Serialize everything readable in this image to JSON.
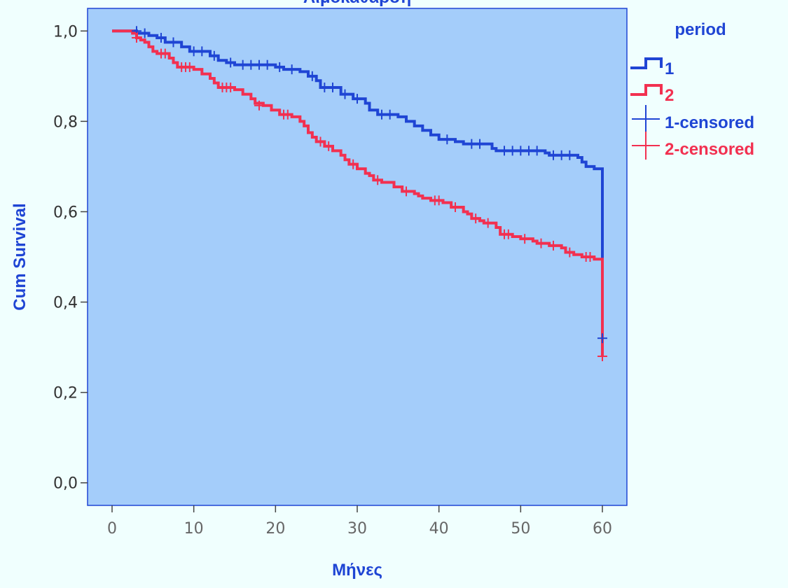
{
  "chart_data": {
    "type": "line",
    "title": "Αιμοκάθαρση",
    "xlabel": "Μήνες",
    "ylabel": "Cum Survival",
    "xlim": [
      -3,
      63
    ],
    "ylim": [
      -0.05,
      1.05
    ],
    "x_ticks": [
      0,
      10,
      20,
      30,
      40,
      50,
      60
    ],
    "y_ticks": [
      0.0,
      0.2,
      0.4,
      0.6,
      0.8,
      1.0
    ],
    "x_tick_labels": [
      "0",
      "10",
      "20",
      "30",
      "40",
      "50",
      "60"
    ],
    "y_tick_labels": [
      "0,0",
      "0,2",
      "0,4",
      "0,6",
      "0,8",
      "1,0"
    ],
    "grid": false,
    "plot_background": "#a4cdfa",
    "page_background": "#f0fffe",
    "legend": {
      "title": "period",
      "placement": "right",
      "entries": [
        {
          "label": "1",
          "kind": "line",
          "color": "#1f45d4"
        },
        {
          "label": "2",
          "kind": "line",
          "color": "#f23050"
        },
        {
          "label": "1-censored",
          "kind": "censor",
          "color": "#1f45d4"
        },
        {
          "label": "2-censored",
          "kind": "censor",
          "color": "#f23050"
        }
      ]
    },
    "series": [
      {
        "name": "1",
        "color": "#1f45d4",
        "steps": [
          [
            0,
            1.0
          ],
          [
            3,
            0.995
          ],
          [
            4.5,
            0.99
          ],
          [
            5.5,
            0.985
          ],
          [
            6.5,
            0.975
          ],
          [
            8.5,
            0.965
          ],
          [
            9.5,
            0.955
          ],
          [
            12,
            0.945
          ],
          [
            13,
            0.935
          ],
          [
            14,
            0.93
          ],
          [
            15,
            0.925
          ],
          [
            20,
            0.92
          ],
          [
            21,
            0.915
          ],
          [
            23,
            0.91
          ],
          [
            24,
            0.9
          ],
          [
            25,
            0.89
          ],
          [
            25.5,
            0.875
          ],
          [
            28,
            0.86
          ],
          [
            29.5,
            0.85
          ],
          [
            31,
            0.84
          ],
          [
            31.5,
            0.825
          ],
          [
            32.5,
            0.815
          ],
          [
            35,
            0.81
          ],
          [
            36,
            0.8
          ],
          [
            37,
            0.79
          ],
          [
            38,
            0.78
          ],
          [
            39,
            0.77
          ],
          [
            40,
            0.76
          ],
          [
            42,
            0.755
          ],
          [
            43,
            0.75
          ],
          [
            46.5,
            0.74
          ],
          [
            47,
            0.735
          ],
          [
            53,
            0.73
          ],
          [
            53.5,
            0.725
          ],
          [
            57,
            0.72
          ],
          [
            57.5,
            0.71
          ],
          [
            58,
            0.7
          ],
          [
            59,
            0.695
          ],
          [
            60,
            0.5
          ],
          [
            60,
            0.32
          ]
        ],
        "censored": [
          [
            3,
            1.0
          ],
          [
            4,
            0.995
          ],
          [
            6,
            0.985
          ],
          [
            7.5,
            0.975
          ],
          [
            10,
            0.955
          ],
          [
            11,
            0.955
          ],
          [
            12.5,
            0.945
          ],
          [
            14.5,
            0.93
          ],
          [
            16,
            0.925
          ],
          [
            17,
            0.925
          ],
          [
            18,
            0.925
          ],
          [
            19,
            0.925
          ],
          [
            20.5,
            0.92
          ],
          [
            22,
            0.915
          ],
          [
            24.5,
            0.9
          ],
          [
            26,
            0.875
          ],
          [
            27,
            0.875
          ],
          [
            28.5,
            0.86
          ],
          [
            30,
            0.85
          ],
          [
            33,
            0.815
          ],
          [
            34,
            0.815
          ],
          [
            41,
            0.76
          ],
          [
            44,
            0.75
          ],
          [
            45,
            0.75
          ],
          [
            48,
            0.735
          ],
          [
            49,
            0.735
          ],
          [
            50,
            0.735
          ],
          [
            51,
            0.735
          ],
          [
            52,
            0.735
          ],
          [
            54,
            0.725
          ],
          [
            55,
            0.725
          ],
          [
            56,
            0.725
          ],
          [
            60,
            0.32
          ]
        ]
      },
      {
        "name": "2",
        "color": "#f23050",
        "steps": [
          [
            0,
            1.0
          ],
          [
            2.5,
            0.995
          ],
          [
            3,
            0.985
          ],
          [
            3.5,
            0.98
          ],
          [
            4,
            0.975
          ],
          [
            4.5,
            0.965
          ],
          [
            5,
            0.955
          ],
          [
            5.5,
            0.95
          ],
          [
            7,
            0.94
          ],
          [
            7.5,
            0.93
          ],
          [
            8,
            0.92
          ],
          [
            10,
            0.915
          ],
          [
            11,
            0.905
          ],
          [
            12,
            0.895
          ],
          [
            12.5,
            0.885
          ],
          [
            13,
            0.875
          ],
          [
            15,
            0.87
          ],
          [
            16,
            0.86
          ],
          [
            17,
            0.85
          ],
          [
            17.5,
            0.84
          ],
          [
            18.5,
            0.835
          ],
          [
            19.5,
            0.825
          ],
          [
            20.5,
            0.815
          ],
          [
            22,
            0.81
          ],
          [
            23,
            0.8
          ],
          [
            23.5,
            0.79
          ],
          [
            24,
            0.775
          ],
          [
            24.5,
            0.765
          ],
          [
            25,
            0.755
          ],
          [
            26,
            0.745
          ],
          [
            27,
            0.735
          ],
          [
            28,
            0.725
          ],
          [
            28.5,
            0.715
          ],
          [
            29,
            0.705
          ],
          [
            30,
            0.695
          ],
          [
            31,
            0.685
          ],
          [
            31.5,
            0.68
          ],
          [
            32,
            0.67
          ],
          [
            33,
            0.665
          ],
          [
            34.5,
            0.655
          ],
          [
            35.5,
            0.645
          ],
          [
            37,
            0.64
          ],
          [
            37.5,
            0.635
          ],
          [
            38,
            0.63
          ],
          [
            39,
            0.625
          ],
          [
            40.5,
            0.62
          ],
          [
            41.5,
            0.61
          ],
          [
            43,
            0.6
          ],
          [
            43.5,
            0.595
          ],
          [
            44,
            0.585
          ],
          [
            45,
            0.58
          ],
          [
            45.5,
            0.575
          ],
          [
            47,
            0.565
          ],
          [
            47.5,
            0.55
          ],
          [
            49,
            0.545
          ],
          [
            50,
            0.54
          ],
          [
            51.5,
            0.535
          ],
          [
            52,
            0.53
          ],
          [
            53.5,
            0.525
          ],
          [
            55,
            0.52
          ],
          [
            55.5,
            0.51
          ],
          [
            56.5,
            0.505
          ],
          [
            57.5,
            0.5
          ],
          [
            59,
            0.495
          ],
          [
            60,
            0.49
          ],
          [
            60,
            0.28
          ]
        ],
        "censored": [
          [
            3,
            0.985
          ],
          [
            6,
            0.95
          ],
          [
            6.5,
            0.95
          ],
          [
            8.5,
            0.92
          ],
          [
            9,
            0.92
          ],
          [
            9.5,
            0.92
          ],
          [
            13.5,
            0.875
          ],
          [
            14,
            0.875
          ],
          [
            14.5,
            0.875
          ],
          [
            18,
            0.835
          ],
          [
            21,
            0.815
          ],
          [
            21.5,
            0.815
          ],
          [
            25.5,
            0.755
          ],
          [
            26.5,
            0.745
          ],
          [
            29.5,
            0.705
          ],
          [
            32.5,
            0.67
          ],
          [
            36,
            0.645
          ],
          [
            39.5,
            0.625
          ],
          [
            40,
            0.625
          ],
          [
            42,
            0.61
          ],
          [
            44.5,
            0.585
          ],
          [
            46,
            0.575
          ],
          [
            48,
            0.55
          ],
          [
            48.5,
            0.55
          ],
          [
            50.5,
            0.54
          ],
          [
            52.5,
            0.53
          ],
          [
            54,
            0.525
          ],
          [
            56,
            0.51
          ],
          [
            58,
            0.5
          ],
          [
            58.5,
            0.5
          ],
          [
            60,
            0.28
          ]
        ]
      }
    ]
  }
}
